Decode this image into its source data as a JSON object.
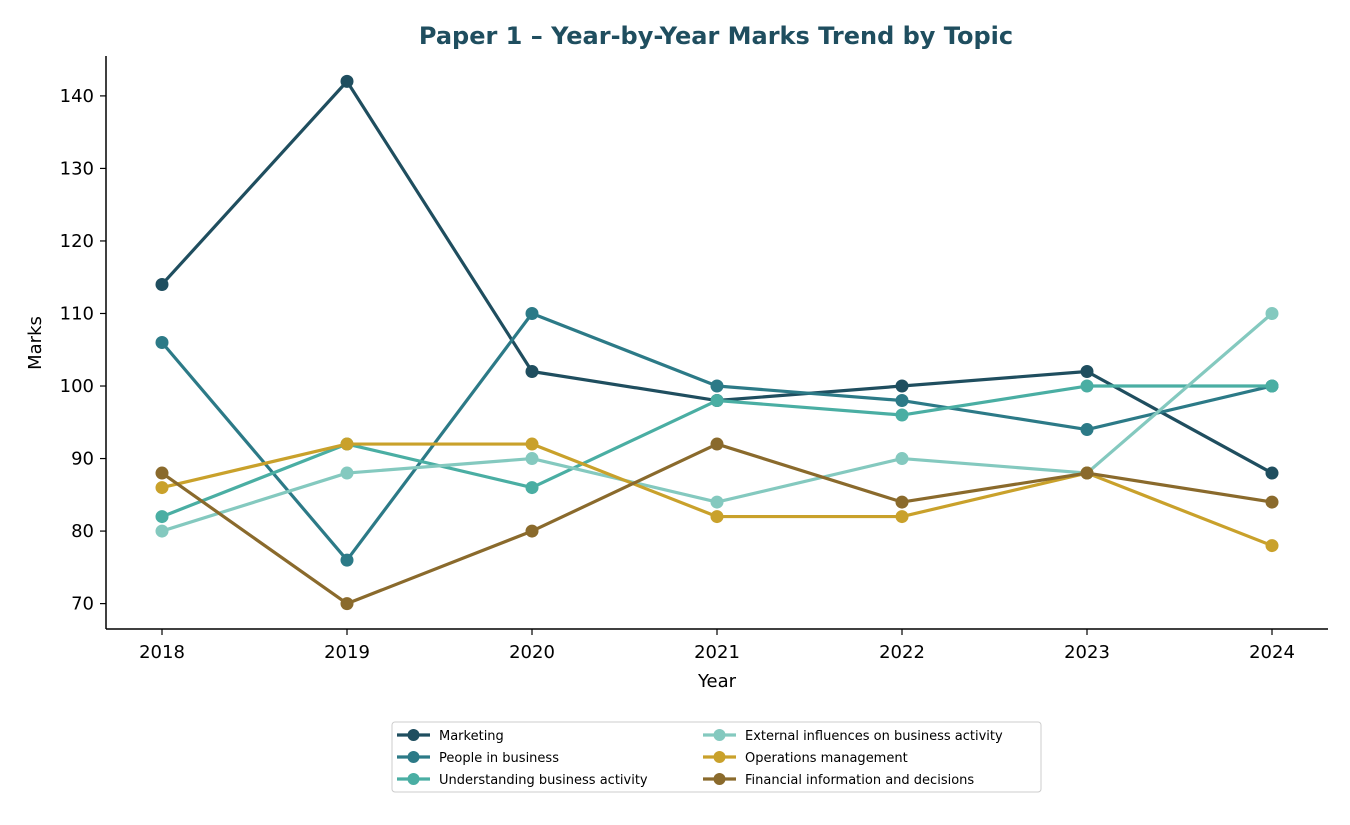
{
  "chart_data": {
    "type": "line",
    "title": "Paper 1 – Year-by-Year Marks Trend by Topic",
    "xlabel": "Year",
    "ylabel": "Marks",
    "x": [
      "2018",
      "2019",
      "2020",
      "2021",
      "2022",
      "2023",
      "2024"
    ],
    "ylim": [
      66.5,
      145.5
    ],
    "yticks": [
      70,
      80,
      90,
      100,
      110,
      120,
      130,
      140
    ],
    "grid": false,
    "legend_position": "bottom-center",
    "series": [
      {
        "name": "Marketing",
        "color": "#1f4e5f",
        "values": [
          114,
          142,
          102,
          98,
          100,
          102,
          88
        ]
      },
      {
        "name": "People in business",
        "color": "#2c7a87",
        "values": [
          106,
          76,
          110,
          100,
          98,
          94,
          100
        ]
      },
      {
        "name": "Understanding business activity",
        "color": "#4aaea3",
        "values": [
          82,
          92,
          86,
          98,
          96,
          100,
          100
        ]
      },
      {
        "name": "External influences on business activity",
        "color": "#84c9bf",
        "values": [
          80,
          88,
          90,
          84,
          90,
          88,
          110
        ]
      },
      {
        "name": "Operations management",
        "color": "#c9a12b",
        "values": [
          86,
          92,
          92,
          82,
          82,
          88,
          78
        ]
      },
      {
        "name": "Financial information and decisions",
        "color": "#8a6a2c",
        "values": [
          88,
          70,
          80,
          92,
          84,
          88,
          84
        ]
      }
    ]
  }
}
